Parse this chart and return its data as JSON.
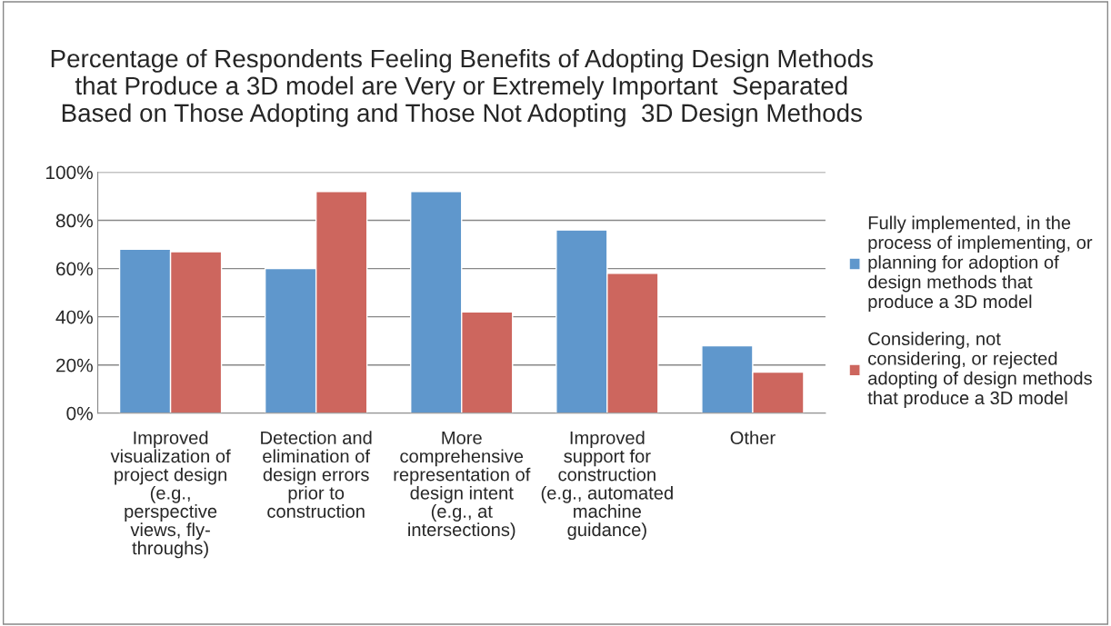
{
  "chart_data": {
    "type": "bar",
    "title": "Percentage of Respondents Feeling Benefits of Adopting Design Methods\nthat Produce a 3D model are Very or Extremely Important  Separated\nBased on Those Adopting and Those Not Adopting  3D Design Methods",
    "categories": [
      "Improved\nvisualization of\nproject design\n(e.g.,\nperspective\nviews, fly-\nthroughs)",
      "Detection and\nelimination of\ndesign errors\nprior to\nconstruction",
      "More\ncomprehensive\nrepresentation of\ndesign intent\n(e.g., at\nintersections)",
      "Improved\nsupport for\nconstruction\n(e.g., automated\nmachine\nguidance)",
      "Other"
    ],
    "series": [
      {
        "name": "Fully implemented, in the\nprocess of implementing, or\nplanning for adoption of\ndesign methods that\nproduce a 3D model",
        "color": "#5f97cc",
        "values": [
          68,
          60,
          92,
          76,
          28
        ]
      },
      {
        "name": "Considering, not\nconsidering, or rejected\nadopting of design methods\nthat produce a 3D model",
        "color": "#cd665e",
        "values": [
          67,
          92,
          42,
          58,
          17
        ]
      }
    ],
    "ylim": [
      0,
      100
    ],
    "yticks": [
      {
        "value": 0,
        "label": "0%"
      },
      {
        "value": 20,
        "label": "20%"
      },
      {
        "value": 40,
        "label": "40%"
      },
      {
        "value": 60,
        "label": "60%"
      },
      {
        "value": 80,
        "label": "80%"
      },
      {
        "value": 100,
        "label": "100%"
      }
    ],
    "grid": "y",
    "legend": "right"
  }
}
